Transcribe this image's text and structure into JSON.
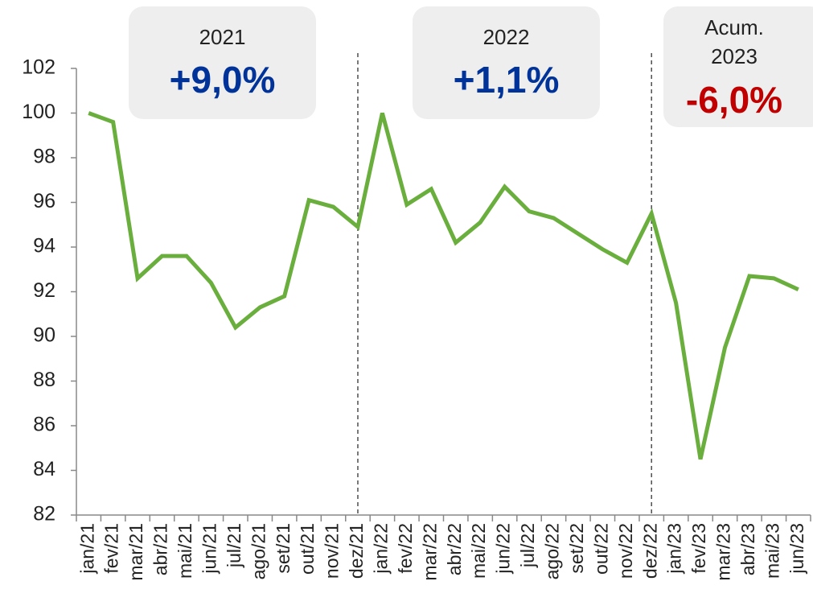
{
  "chart_data": {
    "type": "line",
    "categories": [
      "jan/21",
      "fev/21",
      "mar/21",
      "abr/21",
      "mai/21",
      "jun/21",
      "jul/21",
      "ago/21",
      "set/21",
      "out/21",
      "nov/21",
      "dez/21",
      "jan/22",
      "fev/22",
      "mar/22",
      "abr/22",
      "mai/22",
      "jun/22",
      "jul/22",
      "ago/22",
      "set/22",
      "out/22",
      "nov/22",
      "dez/22",
      "jan/23",
      "fev/23",
      "mar/23",
      "abr/23",
      "mai/23",
      "jun/23"
    ],
    "series": [
      {
        "color": "#6aaf3d",
        "values": [
          100,
          99.6,
          92.6,
          93.6,
          93.6,
          92.4,
          90.4,
          91.3,
          91.8,
          96.1,
          95.8,
          94.9,
          100,
          95.9,
          96.6,
          94.2,
          95.1,
          96.7,
          95.6,
          95.3,
          94.6,
          93.9,
          93.3,
          95.5,
          91.5,
          84.5,
          89.5,
          92.7,
          92.6,
          92.1
        ]
      }
    ],
    "ylim": [
      82,
      102
    ],
    "yticks": [
      82,
      84,
      86,
      88,
      90,
      92,
      94,
      96,
      98,
      100,
      102
    ],
    "annotations": [
      {
        "label": [
          "2021"
        ],
        "value": "+9,0%",
        "color": "#003399"
      },
      {
        "label": [
          "2022"
        ],
        "value": "+1,1%",
        "color": "#003399"
      },
      {
        "label": [
          "Acum.",
          "2023"
        ],
        "value": "-6,0%",
        "color": "#c00000"
      }
    ]
  }
}
